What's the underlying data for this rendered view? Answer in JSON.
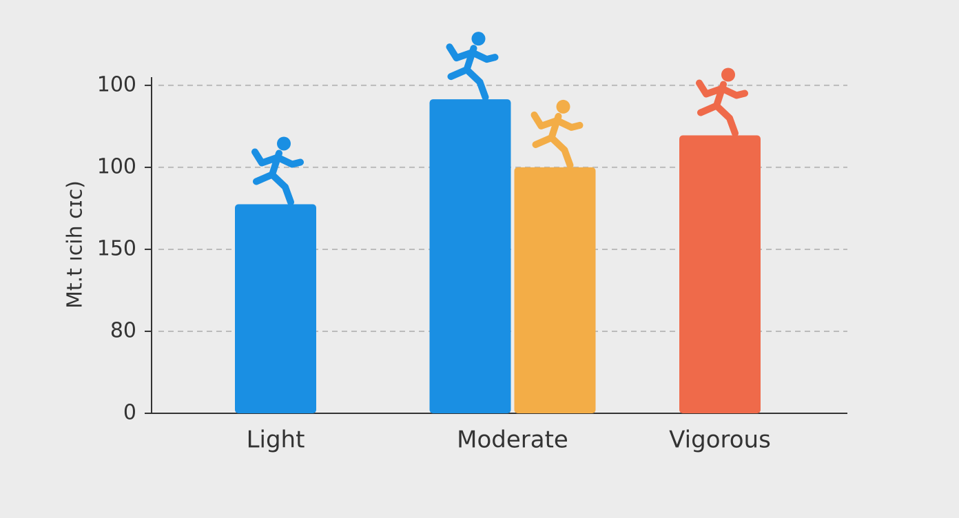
{
  "chart_data": {
    "type": "bar",
    "y_label": "Mt.t ıcih cɪc)",
    "categories": [
      "Light",
      "Moderate",
      "Vigorous"
    ],
    "series": [
      {
        "color": "#1a8fe3",
        "values": [
          2.55,
          3.83,
          null
        ]
      },
      {
        "color": "#f3ad47",
        "values": [
          null,
          3.0,
          null
        ]
      },
      {
        "color": "#ef6a4a",
        "values": [
          null,
          null,
          3.39
        ]
      }
    ],
    "ylim": [
      0,
      4.1
    ],
    "yticks": [
      0,
      {
        "value": 1,
        "label": "80"
      },
      {
        "value": 2,
        "label": "150"
      },
      {
        "value": 3,
        "label": "100"
      },
      {
        "value": 4,
        "label": "100"
      }
    ],
    "grid": true
  }
}
